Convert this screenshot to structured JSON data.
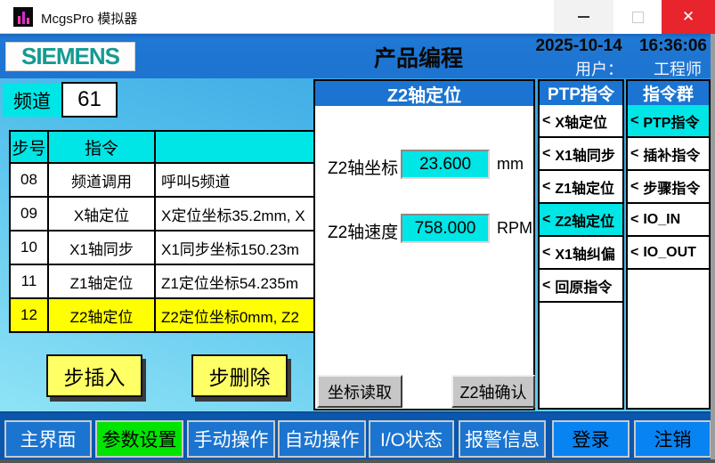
{
  "window": {
    "title": "McgsPro 模拟器",
    "close_icon": "✕"
  },
  "header": {
    "brand": "SIEMENS",
    "title": "产品编程",
    "date": "2025-10-14",
    "time": "16:36:06",
    "user_label": "用户：",
    "user_value": "工程师"
  },
  "channel": {
    "label": "频道",
    "value": "61"
  },
  "step_table": {
    "headers": [
      "步号",
      "指令",
      ""
    ],
    "rows": [
      {
        "step": "08",
        "instruction": "频道调用",
        "detail": "呼叫5频道"
      },
      {
        "step": "09",
        "instruction": "X轴定位",
        "detail": "X定位坐标35.2mm, X"
      },
      {
        "step": "10",
        "instruction": "X1轴同步",
        "detail": "X1同步坐标150.23m"
      },
      {
        "step": "11",
        "instruction": "Z1轴定位",
        "detail": "Z1定位坐标54.235m"
      },
      {
        "step": "12",
        "instruction": "Z2轴定位",
        "detail": "Z2定位坐标0mm, Z2"
      }
    ],
    "highlighted_step": "12"
  },
  "step_actions": {
    "insert": "步插入",
    "delete": "步删除"
  },
  "z2_panel": {
    "title": "Z2轴定位",
    "fields": [
      {
        "label": "Z2轴坐标",
        "value": "23.600",
        "unit": "mm"
      },
      {
        "label": "Z2轴速度",
        "value": "758.000",
        "unit": "RPM"
      }
    ],
    "buttons": {
      "read": "坐标读取",
      "confirm": "Z2轴确认"
    }
  },
  "ptp_list": {
    "title": "PTP指令",
    "marker": "<",
    "items": [
      "X轴定位",
      "X1轴同步",
      "Z1轴定位",
      "Z2轴定位",
      "X1轴纠偏",
      "回原指令"
    ],
    "selected_index": 3
  },
  "group_list": {
    "title": "指令群",
    "marker": "<",
    "items": [
      "PTP指令",
      "插补指令",
      "步骤指令",
      "IO_IN",
      "IO_OUT"
    ],
    "selected_index": 0
  },
  "bottom_nav": {
    "items": [
      "主界面",
      "参数设置",
      "手动操作",
      "自动操作",
      "I/O状态",
      "报警信息",
      "登录",
      "注销"
    ],
    "active_index": 1
  },
  "colors": {
    "header_blue": "#1e74d0",
    "cyan": "#00e5e5",
    "highlight_yellow": "#ffff00",
    "button_yellow": "#ffff66",
    "nav_green": "#00e400",
    "bright_blue": "#0883f2",
    "close_red": "#e8252d"
  }
}
